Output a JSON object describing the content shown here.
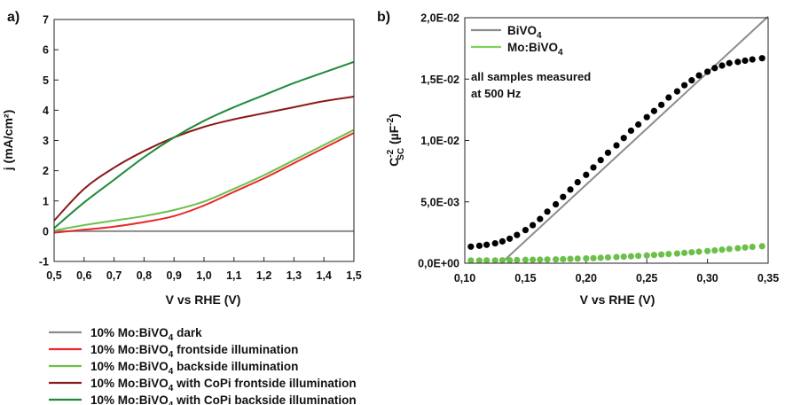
{
  "chart_data": [
    {
      "panel_label": "a)",
      "type": "line",
      "xlabel": "V vs RHE (V)",
      "ylabel": "j (mA/cm²)",
      "xlim": [
        0.5,
        1.5
      ],
      "ylim": [
        -1,
        7
      ],
      "x_ticks": [
        "0,5",
        "0,6",
        "0,7",
        "0,8",
        "0,9",
        "1,0",
        "1,1",
        "1,2",
        "1,3",
        "1,4",
        "1,5"
      ],
      "y_ticks": [
        "-1",
        "0",
        "1",
        "2",
        "3",
        "4",
        "5",
        "6",
        "7"
      ],
      "grid": false,
      "legend_position": "below",
      "series": [
        {
          "name": "10% Mo:BiVO₄ dark",
          "color": "#8c8c8c",
          "x": [
            0.5,
            1.5
          ],
          "y": [
            0.0,
            0.0
          ]
        },
        {
          "name": "10% Mo:BiVO₄ frontside illumination",
          "color": "#e8262b",
          "x": [
            0.5,
            0.6,
            0.7,
            0.8,
            0.9,
            1.0,
            1.1,
            1.2,
            1.3,
            1.4,
            1.5
          ],
          "y": [
            -0.05,
            0.05,
            0.15,
            0.3,
            0.5,
            0.85,
            1.3,
            1.75,
            2.25,
            2.75,
            3.25
          ]
        },
        {
          "name": "10% Mo:BiVO₄ backside illumination",
          "color": "#6cc04a",
          "x": [
            0.5,
            0.6,
            0.7,
            0.8,
            0.9,
            1.0,
            1.1,
            1.2,
            1.3,
            1.4,
            1.5
          ],
          "y": [
            0.02,
            0.2,
            0.35,
            0.5,
            0.7,
            0.98,
            1.4,
            1.85,
            2.35,
            2.85,
            3.35
          ]
        },
        {
          "name": "10% Mo:BiVO₄ with CoPi frontside illumination",
          "color": "#8b1a1a",
          "x": [
            0.5,
            0.6,
            0.7,
            0.8,
            0.9,
            1.0,
            1.1,
            1.2,
            1.3,
            1.4,
            1.5
          ],
          "y": [
            0.35,
            1.4,
            2.1,
            2.65,
            3.1,
            3.45,
            3.7,
            3.9,
            4.1,
            4.3,
            4.45
          ]
        },
        {
          "name": "10% Mo:BiVO₄ with CoPi backside illumination",
          "color": "#1e8a3a",
          "x": [
            0.5,
            0.6,
            0.7,
            0.8,
            0.9,
            1.0,
            1.1,
            1.2,
            1.3,
            1.4,
            1.5
          ],
          "y": [
            0.1,
            0.95,
            1.7,
            2.45,
            3.1,
            3.65,
            4.1,
            4.5,
            4.9,
            5.25,
            5.6
          ]
        }
      ]
    },
    {
      "panel_label": "b)",
      "type": "scatter",
      "xlabel": "V vs RHE (V)",
      "ylabel_main": "C",
      "ylabel_sup": "-2",
      "ylabel_sub": "SC",
      "ylabel_unit_open": "(µF",
      "ylabel_unit_sup": "-2",
      "ylabel_unit_close": ")",
      "xlim": [
        0.1,
        0.35
      ],
      "ylim": [
        0,
        0.02
      ],
      "x_ticks": [
        "0,10",
        "0,15",
        "0,20",
        "0,25",
        "0,30",
        "0,35"
      ],
      "y_ticks": [
        "0,0E+00",
        "5,0E-03",
        "1,0E-02",
        "1,5E-02",
        "2,0E-02"
      ],
      "grid": false,
      "annotation": [
        "all samples measured",
        "at 500 Hz"
      ],
      "legend_position": "top-left",
      "legend": [
        {
          "label_main": "BiVO",
          "label_sub": "4",
          "color": "#8c8c8c"
        },
        {
          "label_main": "Mo:BiVO",
          "label_sub": "4",
          "color": "#7ed35a"
        }
      ],
      "fit_line": {
        "color": "#8c8c8c",
        "x": [
          0.13,
          0.35
        ],
        "y": [
          0.0,
          0.0201
        ]
      },
      "series": [
        {
          "color": "#000000",
          "x": [
            0.105,
            0.112,
            0.118,
            0.125,
            0.131,
            0.137,
            0.143,
            0.15,
            0.156,
            0.162,
            0.168,
            0.175,
            0.181,
            0.187,
            0.193,
            0.2,
            0.206,
            0.212,
            0.218,
            0.225,
            0.231,
            0.237,
            0.243,
            0.25,
            0.256,
            0.262,
            0.268,
            0.275,
            0.281,
            0.287,
            0.293,
            0.3,
            0.306,
            0.312,
            0.318,
            0.325,
            0.331,
            0.337,
            0.345
          ],
          "y": [
            0.00135,
            0.00142,
            0.0015,
            0.00162,
            0.00178,
            0.002,
            0.0023,
            0.0027,
            0.0031,
            0.0036,
            0.0042,
            0.0048,
            0.0054,
            0.006,
            0.0066,
            0.0072,
            0.0078,
            0.0084,
            0.009,
            0.0096,
            0.0102,
            0.0108,
            0.0113,
            0.0119,
            0.0124,
            0.0129,
            0.0135,
            0.014,
            0.0145,
            0.0149,
            0.0153,
            0.0156,
            0.0159,
            0.0161,
            0.0163,
            0.0164,
            0.0165,
            0.0166,
            0.0167
          ]
        },
        {
          "color": "#6cc04a",
          "x": [
            0.105,
            0.112,
            0.118,
            0.125,
            0.131,
            0.137,
            0.143,
            0.15,
            0.156,
            0.162,
            0.168,
            0.175,
            0.181,
            0.187,
            0.193,
            0.2,
            0.206,
            0.212,
            0.218,
            0.225,
            0.231,
            0.237,
            0.243,
            0.25,
            0.256,
            0.262,
            0.268,
            0.275,
            0.281,
            0.287,
            0.293,
            0.3,
            0.306,
            0.312,
            0.318,
            0.325,
            0.331,
            0.337,
            0.345
          ],
          "y": [
            0.00022,
            0.00022,
            0.00023,
            0.00023,
            0.00024,
            0.00025,
            0.00026,
            0.00027,
            0.00028,
            0.00029,
            0.0003,
            0.00031,
            0.00033,
            0.00035,
            0.00037,
            0.00039,
            0.00041,
            0.00044,
            0.00047,
            0.0005,
            0.00053,
            0.00056,
            0.0006,
            0.00063,
            0.00067,
            0.00071,
            0.00075,
            0.00079,
            0.00084,
            0.00089,
            0.00094,
            0.00099,
            0.00104,
            0.0011,
            0.00116,
            0.00122,
            0.00128,
            0.00133,
            0.00138
          ]
        }
      ]
    }
  ],
  "legend_a": [
    {
      "prefix": "10% Mo:BiVO",
      "sub": "4",
      "suffix": " dark",
      "color": "#8c8c8c"
    },
    {
      "prefix": "10% Mo:BiVO",
      "sub": "4",
      "suffix": " frontside illumination",
      "color": "#e8262b"
    },
    {
      "prefix": "10% Mo:BiVO",
      "sub": "4",
      "suffix": " backside illumination",
      "color": "#6cc04a"
    },
    {
      "prefix": "10% Mo:BiVO",
      "sub": "4",
      "suffix": " with CoPi frontside illumination",
      "color": "#8b1a1a"
    },
    {
      "prefix": "10% Mo:BiVO",
      "sub": "4",
      "suffix": " with CoPi backside illumination",
      "color": "#1e8a3a"
    }
  ]
}
